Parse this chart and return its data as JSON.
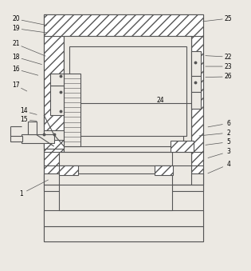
{
  "bg_color": "#ece9e3",
  "line_color": "#555555",
  "fig_width": 3.15,
  "fig_height": 3.39,
  "dpi": 100,
  "labels_data": {
    "20": [
      0.063,
      0.93,
      0.195,
      0.905
    ],
    "19": [
      0.063,
      0.895,
      0.195,
      0.878
    ],
    "21": [
      0.063,
      0.838,
      0.19,
      0.79
    ],
    "18": [
      0.063,
      0.79,
      0.175,
      0.76
    ],
    "16": [
      0.063,
      0.745,
      0.16,
      0.72
    ],
    "17": [
      0.063,
      0.685,
      0.115,
      0.66
    ],
    "14": [
      0.095,
      0.59,
      0.155,
      0.575
    ],
    "15": [
      0.095,
      0.558,
      0.155,
      0.553
    ],
    "1": [
      0.085,
      0.285,
      0.2,
      0.34
    ],
    "25": [
      0.91,
      0.932,
      0.8,
      0.92
    ],
    "22": [
      0.91,
      0.79,
      0.81,
      0.795
    ],
    "23": [
      0.91,
      0.755,
      0.81,
      0.755
    ],
    "26": [
      0.91,
      0.717,
      0.81,
      0.715
    ],
    "24": [
      0.64,
      0.63,
      0.53,
      0.66
    ],
    "6": [
      0.91,
      0.545,
      0.82,
      0.53
    ],
    "2": [
      0.91,
      0.51,
      0.785,
      0.498
    ],
    "5": [
      0.91,
      0.476,
      0.81,
      0.464
    ],
    "3": [
      0.91,
      0.44,
      0.82,
      0.415
    ],
    "4": [
      0.91,
      0.393,
      0.82,
      0.357
    ]
  }
}
